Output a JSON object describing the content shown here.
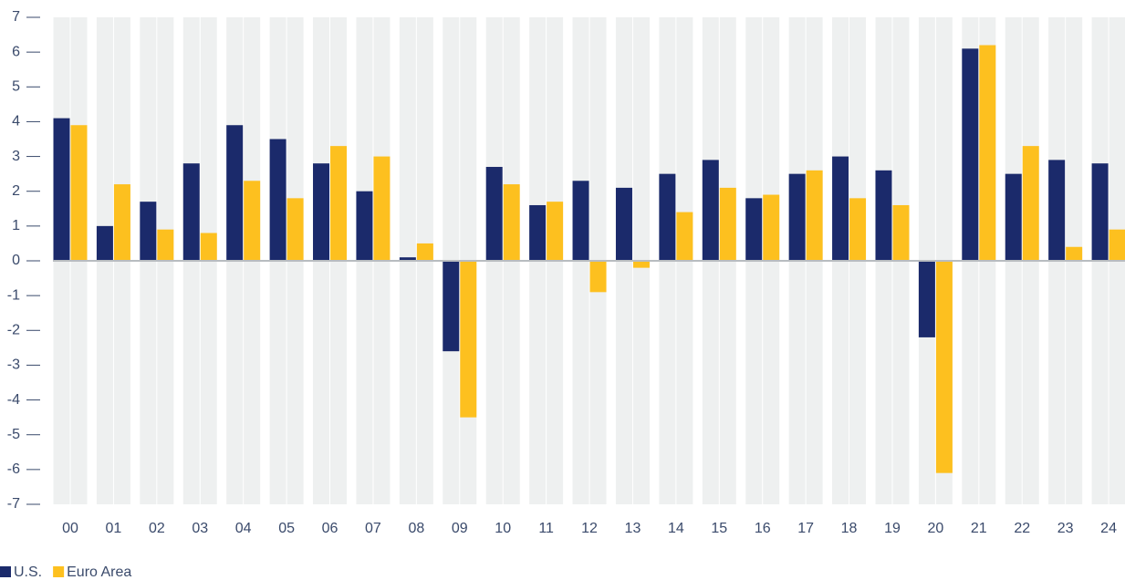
{
  "chart_data": {
    "type": "bar",
    "categories": [
      "00",
      "01",
      "02",
      "03",
      "04",
      "05",
      "06",
      "07",
      "08",
      "09",
      "10",
      "11",
      "12",
      "13",
      "14",
      "15",
      "16",
      "17",
      "18",
      "19",
      "20",
      "21",
      "22",
      "23",
      "24"
    ],
    "series": [
      {
        "name": "U.S.",
        "color": "#1b2a6b",
        "values": [
          4.1,
          1.0,
          1.7,
          2.8,
          3.9,
          3.5,
          2.8,
          2.0,
          0.1,
          -2.6,
          2.7,
          1.6,
          2.3,
          2.1,
          2.5,
          2.9,
          1.8,
          2.5,
          3.0,
          2.6,
          -2.2,
          6.1,
          2.5,
          2.9,
          2.8
        ]
      },
      {
        "name": "Euro Area",
        "color": "#fdc01f",
        "values": [
          3.9,
          2.2,
          0.9,
          0.8,
          2.3,
          1.8,
          3.3,
          3.0,
          0.5,
          -4.5,
          2.2,
          1.7,
          -0.9,
          -0.2,
          1.4,
          2.1,
          1.9,
          2.6,
          1.8,
          1.6,
          -6.1,
          6.2,
          3.3,
          0.4,
          0.9
        ]
      }
    ],
    "ylim": [
      -7,
      7
    ],
    "yticks": [
      -7,
      -6,
      -5,
      -4,
      -3,
      -2,
      -1,
      0,
      1,
      2,
      3,
      4,
      5,
      6,
      7
    ],
    "legend": "bottom-left"
  }
}
